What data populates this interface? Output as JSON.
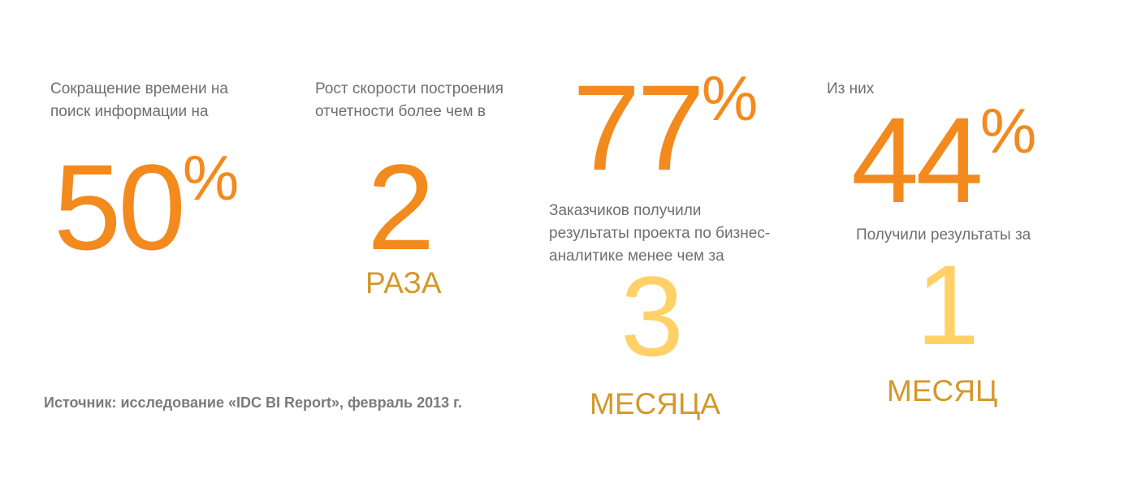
{
  "block1": {
    "caption_line1": "Сокращение времени на",
    "caption_line2": "поиск информации на",
    "number": "50",
    "suffix": "%"
  },
  "block2": {
    "caption_line1": "Рост скорости построения",
    "caption_line2": "отчетности более чем в",
    "number": "2",
    "unit": "РАЗА"
  },
  "block3": {
    "number": "77",
    "suffix": "%",
    "caption_line1": "Заказчиков получили",
    "caption_line2": "результаты проекта по бизнес-",
    "caption_line3": "аналитике менее чем  за",
    "sub_number": "3",
    "unit": "МЕСЯЦА"
  },
  "block4": {
    "intro": "Из них",
    "number": "44",
    "suffix": "%",
    "caption": "Получили результаты за",
    "sub_number": "1",
    "unit": "МЕСЯЦ"
  },
  "source": "Источник: исследование «IDC BI Report», февраль 2013 г.",
  "colors": {
    "orange": "#f28a1e",
    "gold": "#d4982a",
    "pale_yellow": "#ffd166",
    "gray": "#6f6f6f"
  }
}
